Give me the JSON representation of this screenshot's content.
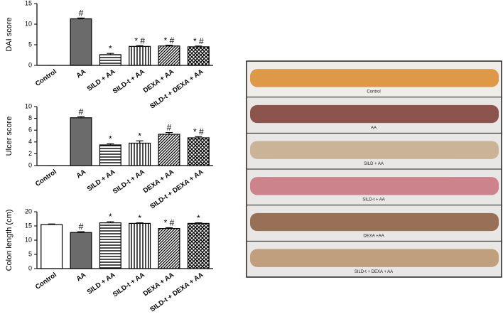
{
  "chart_data": [
    {
      "type": "bar",
      "y_label": "DAI score",
      "categories": [
        "Control",
        "AA",
        "SILD + AA",
        "SILD-t + AA",
        "DEXA + AA",
        "SILD-t + DEXA + AA"
      ],
      "values": [
        0,
        11.3,
        2.6,
        4.6,
        4.7,
        4.5
      ],
      "errors": [
        0,
        0.2,
        0.3,
        0.2,
        0.2,
        0.2
      ],
      "annotations": [
        null,
        "#",
        "*",
        "* #",
        "* #",
        "* #"
      ],
      "patterns": [
        "none",
        "solid",
        "horizontal",
        "vertical",
        "diagonal",
        "crosshatch"
      ],
      "ylim": [
        0,
        15
      ],
      "yticks": [
        0,
        5,
        10,
        15
      ]
    },
    {
      "type": "bar",
      "y_label": "Ulcer score",
      "categories": [
        "Control",
        "AA",
        "SILD + AA",
        "SILD-t + AA",
        "DEXA + AA",
        "SILD-t + DEXA + AA"
      ],
      "values": [
        0,
        8.1,
        3.5,
        3.8,
        5.3,
        4.7
      ],
      "errors": [
        0,
        0.2,
        0.2,
        0.4,
        0.3,
        0.2
      ],
      "annotations": [
        null,
        "#",
        "*",
        "*",
        "#",
        "* #"
      ],
      "patterns": [
        "none",
        "solid",
        "horizontal",
        "vertical",
        "diagonal",
        "crosshatch"
      ],
      "ylim": [
        0,
        10
      ],
      "yticks": [
        0,
        2,
        4,
        6,
        8,
        10
      ]
    },
    {
      "type": "bar",
      "y_label": "Colon length (cm)",
      "categories": [
        "Control",
        "AA",
        "SILD + AA",
        "SILD-t + AA",
        "DEXA + AA",
        "SILD-t + DEXA + AA"
      ],
      "values": [
        15.5,
        12.7,
        16.1,
        15.9,
        14.1,
        15.9
      ],
      "errors": [
        0.2,
        0.3,
        0.4,
        0.2,
        0.3,
        0.2
      ],
      "annotations": [
        null,
        "#",
        "*",
        "*",
        "* #",
        "*"
      ],
      "patterns": [
        "none",
        "solid",
        "horizontal",
        "vertical",
        "diagonal",
        "crosshatch"
      ],
      "ylim": [
        0,
        20
      ],
      "yticks": [
        0,
        5,
        10,
        15,
        20
      ]
    }
  ],
  "photo_panel": {
    "labels": [
      "Control",
      "AA",
      "SILD + AA",
      "SILD-t + AA",
      "DEXA +AA",
      "SILD-t + DEXA + AA"
    ]
  }
}
